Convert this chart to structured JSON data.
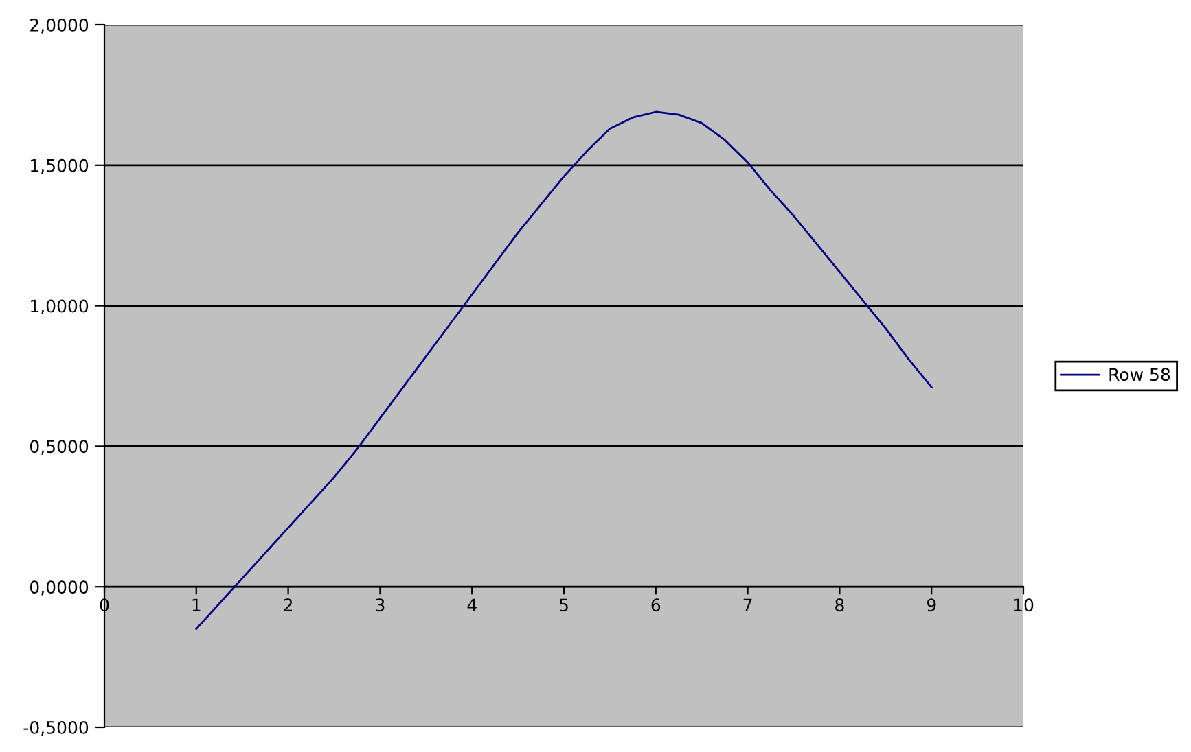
{
  "chart_data": {
    "type": "line",
    "x": [
      1.0,
      1.25,
      1.5,
      1.75,
      2.0,
      2.25,
      2.5,
      2.75,
      3.0,
      3.25,
      3.5,
      3.75,
      4.0,
      4.25,
      4.5,
      4.75,
      5.0,
      5.25,
      5.5,
      5.75,
      6.0,
      6.25,
      6.5,
      6.75,
      7.0,
      7.25,
      7.5,
      7.75,
      8.0,
      8.25,
      8.5,
      8.75,
      9.0
    ],
    "series": [
      {
        "name": "Row 58",
        "color": "#000080",
        "values": [
          -0.15,
          -0.06,
          0.03,
          0.12,
          0.21,
          0.3,
          0.39,
          0.49,
          0.6,
          0.71,
          0.82,
          0.93,
          1.04,
          1.15,
          1.26,
          1.36,
          1.46,
          1.55,
          1.63,
          1.67,
          1.69,
          1.68,
          1.65,
          1.59,
          1.51,
          1.41,
          1.32,
          1.22,
          1.12,
          1.02,
          0.92,
          0.81,
          0.71
        ]
      }
    ],
    "xlim": [
      0,
      10
    ],
    "xticks": [
      0,
      1,
      2,
      3,
      4,
      5,
      6,
      7,
      8,
      9,
      10
    ],
    "ylim": [
      -0.5,
      2.0
    ],
    "yticks": [
      {
        "value": -0.5,
        "label": "-0,5000"
      },
      {
        "value": 0,
        "label": "0,0000"
      },
      {
        "value": 0.5,
        "label": "0,5000"
      },
      {
        "value": 1.0,
        "label": "1,0000"
      },
      {
        "value": 1.5,
        "label": "1,5000"
      },
      {
        "value": 2.0,
        "label": "2,0000"
      }
    ],
    "grid": "y",
    "legend": "right",
    "marker": "none",
    "line_style": "solid"
  }
}
